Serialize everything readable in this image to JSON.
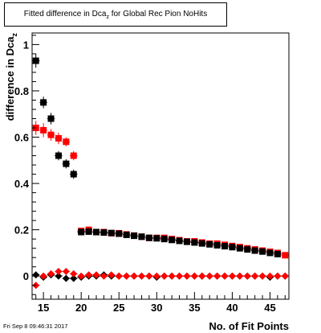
{
  "header": {
    "title_main": "Fitted difference in Dca",
    "title_sub": "z",
    "title_rest": " for Global Rec Pion NoHits"
  },
  "footer": {
    "timestamp": "Fri Sep  8 09:46:31 2017"
  },
  "chart_data": {
    "type": "scatter",
    "title": "Fitted difference in Dca_z for Global Rec Pion NoHits",
    "xlabel": "No. of Fit Points",
    "ylabel": "difference in Dca_z",
    "ylabel_main": "difference in Dca",
    "ylabel_sub": "z",
    "xlim": [
      13.5,
      47.5
    ],
    "ylim": [
      -0.1,
      1.05
    ],
    "x_ticks": [
      15,
      20,
      25,
      30,
      35,
      40,
      45
    ],
    "x_tick_labels": [
      "15",
      "20",
      "25",
      "30",
      "35",
      "40",
      "45"
    ],
    "y_ticks": [
      0,
      0.2,
      0.4,
      0.6,
      0.8,
      1
    ],
    "y_tick_labels": [
      "0",
      "0.2",
      "0.4",
      "0.6",
      "0.8",
      "1"
    ],
    "grid": false,
    "legend": "none",
    "series": [
      {
        "color": "#000000",
        "marker": "square",
        "x": [
          14,
          15,
          16,
          17,
          18,
          19
        ],
        "y": [
          0.93,
          0.75,
          0.68,
          0.52,
          0.485,
          0.44
        ],
        "yerr": [
          0.03,
          0.025,
          0.025,
          0.02,
          0.02,
          0.02
        ]
      },
      {
        "color": "#ff0000",
        "marker": "square",
        "x": [
          14,
          15,
          16,
          17,
          18,
          19,
          20,
          21,
          22,
          23,
          24,
          25,
          26,
          27,
          28,
          29,
          30,
          31,
          32,
          33,
          34,
          35,
          36,
          37,
          38,
          39,
          40,
          41,
          42,
          43,
          44,
          45,
          46,
          47
        ],
        "y": [
          0.64,
          0.63,
          0.61,
          0.595,
          0.58,
          0.52,
          0.195,
          0.2,
          0.19,
          0.19,
          0.185,
          0.185,
          0.18,
          0.175,
          0.17,
          0.165,
          0.165,
          0.165,
          0.16,
          0.155,
          0.15,
          0.15,
          0.145,
          0.14,
          0.14,
          0.135,
          0.13,
          0.125,
          0.12,
          0.115,
          0.11,
          0.105,
          0.1,
          0.09
        ],
        "yerr": [
          0.03,
          0.03,
          0.025,
          0.025,
          0.02,
          0.02,
          0.01,
          0.01,
          0.005,
          0.005,
          0.005,
          0.005,
          0.005,
          0.005,
          0.005,
          0.005,
          0.005,
          0.005,
          0.005,
          0.005,
          0.005,
          0.005,
          0.005,
          0.005,
          0.005,
          0.005,
          0.005,
          0.005,
          0.005,
          0.005,
          0.005,
          0.005,
          0.005,
          0.005
        ]
      },
      {
        "color": "#000000",
        "marker": "square",
        "x": [
          20,
          21,
          22,
          23,
          24,
          25,
          26,
          27,
          28,
          29,
          30,
          31,
          32,
          33,
          34,
          35,
          36,
          37,
          38,
          39,
          40,
          41,
          42,
          43,
          44,
          45,
          46
        ],
        "y": [
          0.19,
          0.192,
          0.19,
          0.188,
          0.186,
          0.183,
          0.178,
          0.174,
          0.17,
          0.165,
          0.163,
          0.16,
          0.156,
          0.152,
          0.148,
          0.145,
          0.141,
          0.137,
          0.133,
          0.129,
          0.125,
          0.12,
          0.115,
          0.11,
          0.106,
          0.1,
          0.095
        ],
        "yerr": [
          0.008,
          0.006,
          0.005,
          0.005,
          0.005,
          0.005,
          0.005,
          0.005,
          0.005,
          0.005,
          0.005,
          0.005,
          0.005,
          0.005,
          0.005,
          0.005,
          0.005,
          0.005,
          0.005,
          0.005,
          0.005,
          0.005,
          0.005,
          0.005,
          0.005,
          0.005,
          0.005
        ]
      },
      {
        "color": "#000000",
        "marker": "diamond",
        "x": [
          14,
          15,
          16,
          17,
          18,
          19,
          20,
          21,
          22,
          23,
          24,
          25,
          26,
          27,
          28,
          29,
          30,
          31,
          32,
          33,
          34,
          35,
          36,
          37,
          38,
          39,
          40,
          41,
          42,
          43,
          44,
          45,
          46,
          47
        ],
        "y": [
          0.005,
          -0.005,
          0.005,
          0.0,
          -0.01,
          -0.01,
          -0.005,
          0.0,
          0.0,
          0.005,
          0.0,
          0.0,
          0.0,
          0.0,
          0.0,
          0.0,
          -0.005,
          0.0,
          0.0,
          0.0,
          0.0,
          0.0,
          0.0,
          0.0,
          0.0,
          0.0,
          0.0,
          0.0,
          0.0,
          0.0,
          0.0,
          -0.005,
          0.0,
          0.0
        ],
        "yerr": [
          0.01,
          0.01,
          0.008,
          0.008,
          0.008,
          0.008,
          0.005,
          0.005,
          0.004,
          0.004,
          0.004,
          0.004,
          0.004,
          0.004,
          0.004,
          0.004,
          0.004,
          0.004,
          0.004,
          0.004,
          0.004,
          0.004,
          0.004,
          0.004,
          0.004,
          0.004,
          0.004,
          0.004,
          0.004,
          0.004,
          0.004,
          0.004,
          0.004,
          0.004
        ]
      },
      {
        "color": "#ff0000",
        "marker": "diamond",
        "x": [
          14,
          15,
          16,
          17,
          18,
          19,
          20,
          21,
          22,
          23,
          24,
          25,
          26,
          27,
          28,
          29,
          30,
          31,
          32,
          33,
          34,
          35,
          36,
          37,
          38,
          39,
          40,
          41,
          42,
          43,
          44,
          45,
          46,
          47
        ],
        "y": [
          -0.04,
          0.0,
          0.01,
          0.02,
          0.02,
          0.01,
          0.0,
          0.005,
          0.005,
          0.0,
          0.005,
          0.0,
          0.0,
          0.0,
          0.0,
          0.0,
          0.0,
          0.0,
          0.0,
          0.0,
          0.0,
          0.0,
          0.0,
          0.0,
          0.0,
          0.0,
          0.0,
          0.0,
          0.0,
          0.0,
          0.0,
          0.0,
          0.0,
          0.0
        ],
        "yerr": [
          0.012,
          0.01,
          0.008,
          0.008,
          0.008,
          0.008,
          0.005,
          0.004,
          0.004,
          0.004,
          0.004,
          0.004,
          0.004,
          0.004,
          0.004,
          0.004,
          0.004,
          0.004,
          0.004,
          0.004,
          0.004,
          0.004,
          0.004,
          0.004,
          0.004,
          0.004,
          0.004,
          0.004,
          0.004,
          0.004,
          0.004,
          0.004,
          0.004,
          0.004
        ]
      }
    ]
  }
}
